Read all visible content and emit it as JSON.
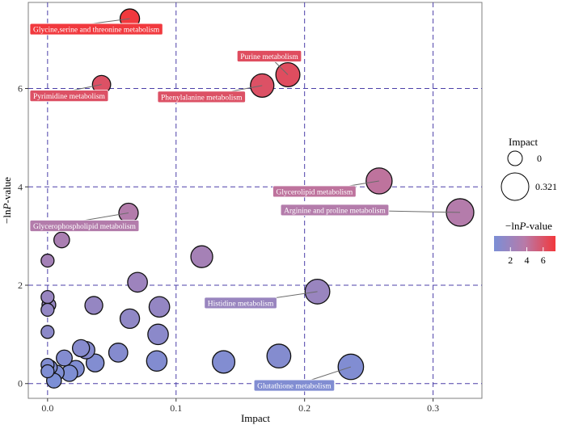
{
  "chart_data": {
    "type": "scatter",
    "xlabel": "Impact",
    "ylabel_prefix": "−ln",
    "ylabel_italic": "P",
    "ylabel_suffix": "-value",
    "xlim": [
      -0.015,
      0.338
    ],
    "ylim": [
      -0.3,
      7.75
    ],
    "x_ticks": [
      0.0,
      0.1,
      0.2,
      0.3
    ],
    "x_tick_labels": [
      "0.0",
      "0.1",
      "0.2",
      "0.3"
    ],
    "y_ticks": [
      0,
      2,
      4,
      6
    ],
    "y_tick_labels": [
      "0",
      "2",
      "4",
      "6"
    ],
    "grid": "dashed purple",
    "size_scale_max_impact": 0.321,
    "color_range": [
      0,
      7.5
    ],
    "colors": {
      "low": "#7b8fd6",
      "mid": "#b87aa8",
      "high": "#f2383c",
      "grid": "#4b3fa8",
      "panel_border": "#7f7f7f"
    },
    "points": [
      {
        "x": 0.064,
        "y": 7.42,
        "label": "Glycine,serine and threonine metabolism"
      },
      {
        "x": 0.187,
        "y": 6.28,
        "label": "Purine metabolism"
      },
      {
        "x": 0.042,
        "y": 6.08,
        "label": "Pyrimidine metabolism"
      },
      {
        "x": 0.167,
        "y": 6.06,
        "label": "Phenylalanine metabolism"
      },
      {
        "x": 0.258,
        "y": 4.12,
        "label": "Glycerolipid metabolism"
      },
      {
        "x": 0.321,
        "y": 3.48,
        "label": "Arginine and proline metabolism"
      },
      {
        "x": 0.063,
        "y": 3.47,
        "label": "Glycerophospholipid metabolism"
      },
      {
        "x": 0.011,
        "y": 2.92,
        "label": ""
      },
      {
        "x": 0.0,
        "y": 2.5,
        "label": ""
      },
      {
        "x": 0.12,
        "y": 2.58,
        "label": ""
      },
      {
        "x": 0.07,
        "y": 2.06,
        "label": ""
      },
      {
        "x": 0.21,
        "y": 1.87,
        "label": "Histidine metabolism"
      },
      {
        "x": 0.0,
        "y": 1.76,
        "label": ""
      },
      {
        "x": 0.001,
        "y": 1.6,
        "label": ""
      },
      {
        "x": 0.036,
        "y": 1.59,
        "label": ""
      },
      {
        "x": 0.087,
        "y": 1.56,
        "label": ""
      },
      {
        "x": 0.0,
        "y": 1.5,
        "label": ""
      },
      {
        "x": 0.064,
        "y": 1.32,
        "label": ""
      },
      {
        "x": 0.0,
        "y": 1.05,
        "label": ""
      },
      {
        "x": 0.086,
        "y": 1.0,
        "label": ""
      },
      {
        "x": 0.026,
        "y": 0.72,
        "label": ""
      },
      {
        "x": 0.03,
        "y": 0.68,
        "label": ""
      },
      {
        "x": 0.055,
        "y": 0.63,
        "label": ""
      },
      {
        "x": 0.18,
        "y": 0.56,
        "label": ""
      },
      {
        "x": 0.013,
        "y": 0.52,
        "label": ""
      },
      {
        "x": 0.085,
        "y": 0.46,
        "label": ""
      },
      {
        "x": 0.137,
        "y": 0.44,
        "label": ""
      },
      {
        "x": 0.037,
        "y": 0.42,
        "label": ""
      },
      {
        "x": 0.0,
        "y": 0.38,
        "label": ""
      },
      {
        "x": 0.002,
        "y": 0.33,
        "label": ""
      },
      {
        "x": 0.236,
        "y": 0.34,
        "label": "Glutathione metabolism"
      },
      {
        "x": 0.022,
        "y": 0.3,
        "label": ""
      },
      {
        "x": 0.0,
        "y": 0.25,
        "label": ""
      },
      {
        "x": 0.007,
        "y": 0.22,
        "label": ""
      },
      {
        "x": 0.017,
        "y": 0.21,
        "label": ""
      },
      {
        "x": 0.005,
        "y": 0.06,
        "label": ""
      }
    ],
    "legend": {
      "size_title": "Impact",
      "size_labels": [
        "0",
        "0.321"
      ],
      "color_title_prefix": "−ln",
      "color_title_italic": "P",
      "color_title_suffix": "-value",
      "color_tick_values": [
        2,
        4,
        6
      ],
      "color_tick_labels": [
        "2",
        "4",
        "6"
      ]
    }
  }
}
